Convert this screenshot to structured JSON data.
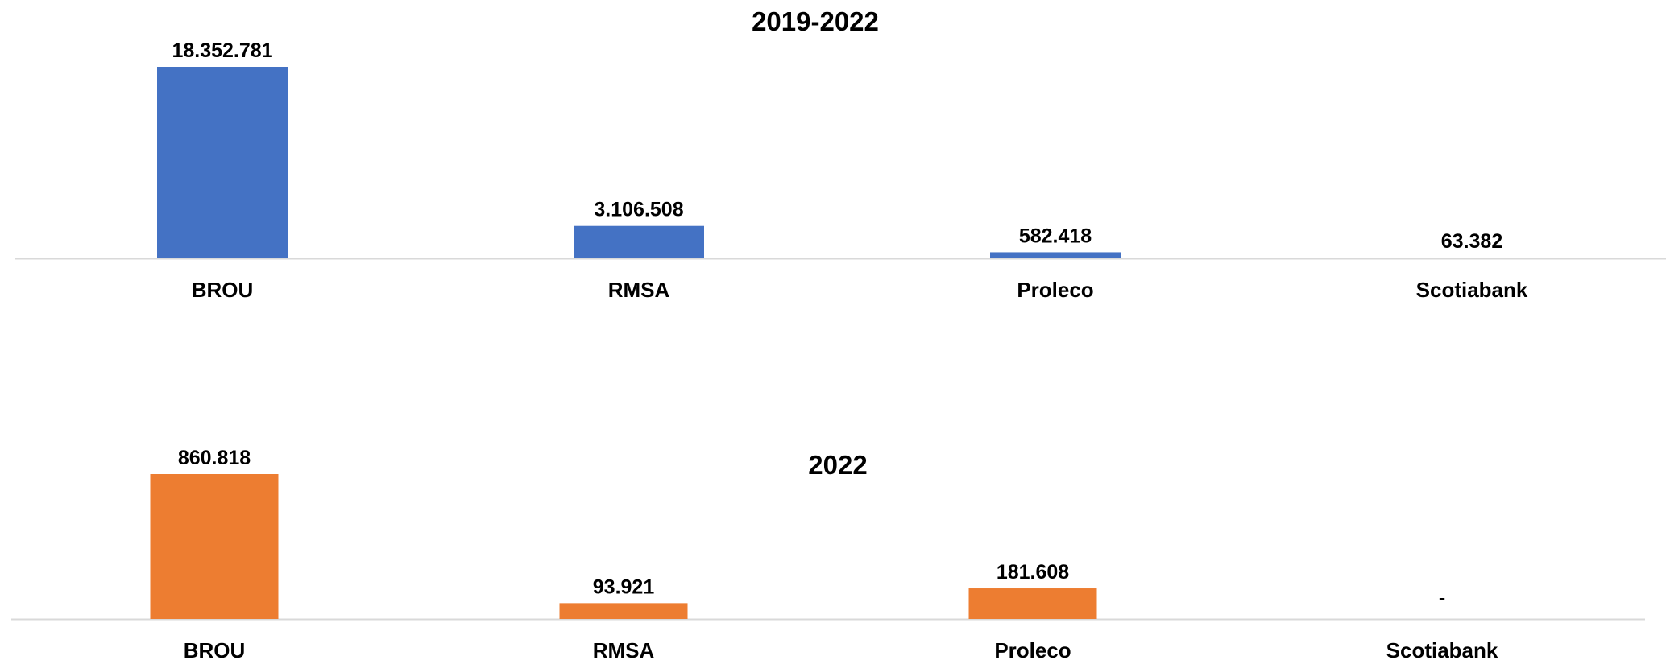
{
  "chart_data": [
    {
      "type": "bar",
      "title": "2019-2022",
      "categories": [
        "BROU",
        "RMSA",
        "Proleco",
        "Scotiabank"
      ],
      "values": [
        18352781,
        3106508,
        582418,
        63382
      ],
      "data_labels": [
        "18.352.781",
        "3.106.508",
        "582.418",
        "63.382"
      ],
      "ylim": [
        0,
        18352781
      ],
      "grid": false,
      "legend": "none",
      "color": "#4472C4",
      "baseline_color": "#D9D9D9"
    },
    {
      "type": "bar",
      "title": "2022",
      "categories": [
        "BROU",
        "RMSA",
        "Proleco",
        "Scotiabank"
      ],
      "values": [
        860818,
        93921,
        181608,
        0
      ],
      "data_labels": [
        "860.818",
        "93.921",
        "181.608",
        "-"
      ],
      "ylim": [
        0,
        860818
      ],
      "grid": false,
      "legend": "none",
      "color": "#ED7D31",
      "baseline_color": "#D9D9D9"
    }
  ]
}
